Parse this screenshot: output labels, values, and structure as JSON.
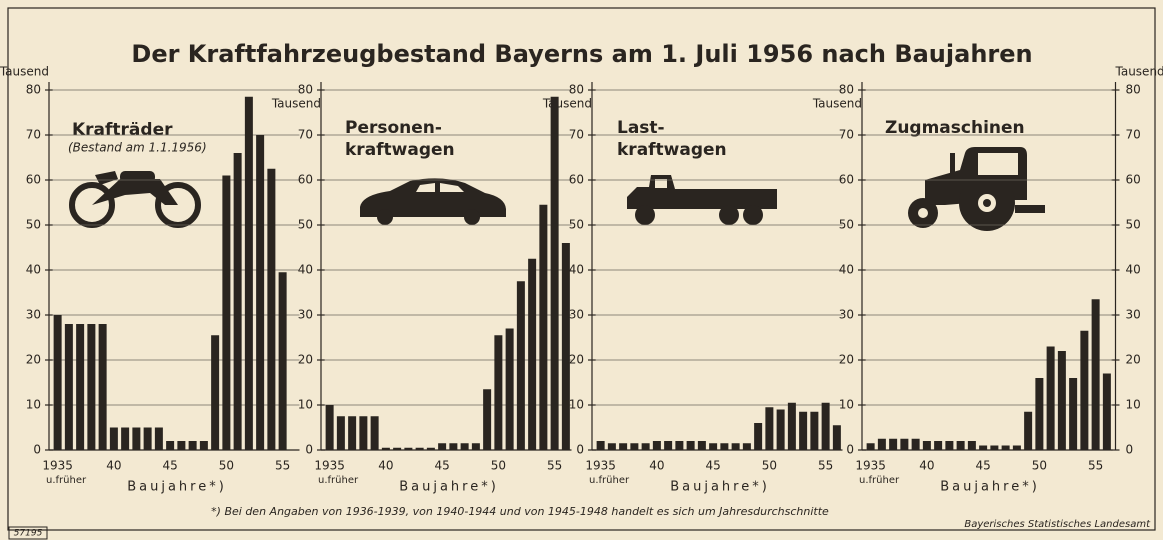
{
  "title": "Der Kraftfahrzeugbestand Bayerns am 1. Juli 1956 nach Baujahren",
  "footnote": "*) Bei den Angaben von 1936-1939, von 1940-1944 und von 1945-1948 handelt es sich um Jahresdurchschnitte",
  "source": "Bayerisches Statistisches Landesamt",
  "figure_number": "57195",
  "chart_data": [
    {
      "type": "bar",
      "title_lines": [
        "Krafträder"
      ],
      "subtitle": "(Bestand am 1.1.1956)",
      "categories": [
        "1935",
        null,
        null,
        null,
        null,
        "40",
        null,
        null,
        null,
        null,
        "45",
        null,
        null,
        null,
        null,
        "50",
        null,
        null,
        null,
        null,
        "55",
        null
      ],
      "category_note": "u.früher",
      "values": [
        30,
        28,
        28,
        28,
        28,
        5,
        5,
        5,
        5,
        5,
        2,
        2,
        2,
        2,
        25.5,
        61,
        66,
        78.5,
        70,
        62.5,
        39.5,
        null
      ],
      "ylim": [
        0,
        80
      ],
      "yticks": [
        0,
        10,
        20,
        30,
        40,
        50,
        60,
        70,
        80
      ],
      "ylabel": "Tausend",
      "xlabel": "Baujahre*)",
      "y_axis_sides": [
        "left"
      ],
      "grid": true,
      "color": "#2a2520"
    },
    {
      "type": "bar",
      "title_lines": [
        "Personen-",
        "kraftwagen"
      ],
      "categories": [
        "1935",
        null,
        null,
        null,
        null,
        "40",
        null,
        null,
        null,
        null,
        "45",
        null,
        null,
        null,
        null,
        "50",
        null,
        null,
        null,
        null,
        "55",
        null
      ],
      "category_note": "u.früher",
      "values": [
        10,
        7.5,
        7.5,
        7.5,
        7.5,
        0.5,
        0.5,
        0.5,
        0.5,
        0.5,
        1.5,
        1.5,
        1.5,
        1.5,
        13.5,
        25.5,
        27,
        37.5,
        42.5,
        54.5,
        78.5,
        46
      ],
      "ylim": [
        0,
        80
      ],
      "yticks": [
        0,
        10,
        20,
        30,
        40,
        50,
        60,
        70,
        80
      ],
      "ylabel": "Tausend",
      "xlabel": "Baujahre*)",
      "y_axis_sides": [
        "left"
      ],
      "grid": true,
      "color": "#2a2520"
    },
    {
      "type": "bar",
      "title_lines": [
        "Last-",
        "kraftwagen"
      ],
      "categories": [
        "1935",
        null,
        null,
        null,
        null,
        "40",
        null,
        null,
        null,
        null,
        "45",
        null,
        null,
        null,
        null,
        "50",
        null,
        null,
        null,
        null,
        "55",
        null
      ],
      "category_note": "u.früher",
      "values": [
        2,
        1.5,
        1.5,
        1.5,
        1.5,
        2,
        2,
        2,
        2,
        2,
        1.5,
        1.5,
        1.5,
        1.5,
        6,
        9.5,
        9,
        10.5,
        8.5,
        8.5,
        10.5,
        5.5
      ],
      "ylim": [
        0,
        80
      ],
      "yticks": [
        0,
        10,
        20,
        30,
        40,
        50,
        60,
        70,
        80
      ],
      "ylabel": "Tausend",
      "xlabel": "Baujahre*)",
      "y_axis_sides": [
        "left"
      ],
      "grid": true,
      "color": "#2a2520"
    },
    {
      "type": "bar",
      "title_lines": [
        "Zugmaschinen"
      ],
      "categories": [
        "1935",
        null,
        null,
        null,
        null,
        "40",
        null,
        null,
        null,
        null,
        "45",
        null,
        null,
        null,
        null,
        "50",
        null,
        null,
        null,
        null,
        "55",
        null
      ],
      "category_note": "u.früher",
      "values": [
        1.5,
        2.5,
        2.5,
        2.5,
        2.5,
        2,
        2,
        2,
        2,
        2,
        1,
        1,
        1,
        1,
        8.5,
        16,
        23,
        22,
        16,
        26.5,
        33.5,
        17
      ],
      "ylim": [
        0,
        80
      ],
      "yticks": [
        0,
        10,
        20,
        30,
        40,
        50,
        60,
        70,
        80
      ],
      "ylabel": "Tausend",
      "xlabel": "Baujahre*)",
      "y_axis_sides": [
        "left",
        "right"
      ],
      "grid": true,
      "color": "#2a2520"
    }
  ]
}
